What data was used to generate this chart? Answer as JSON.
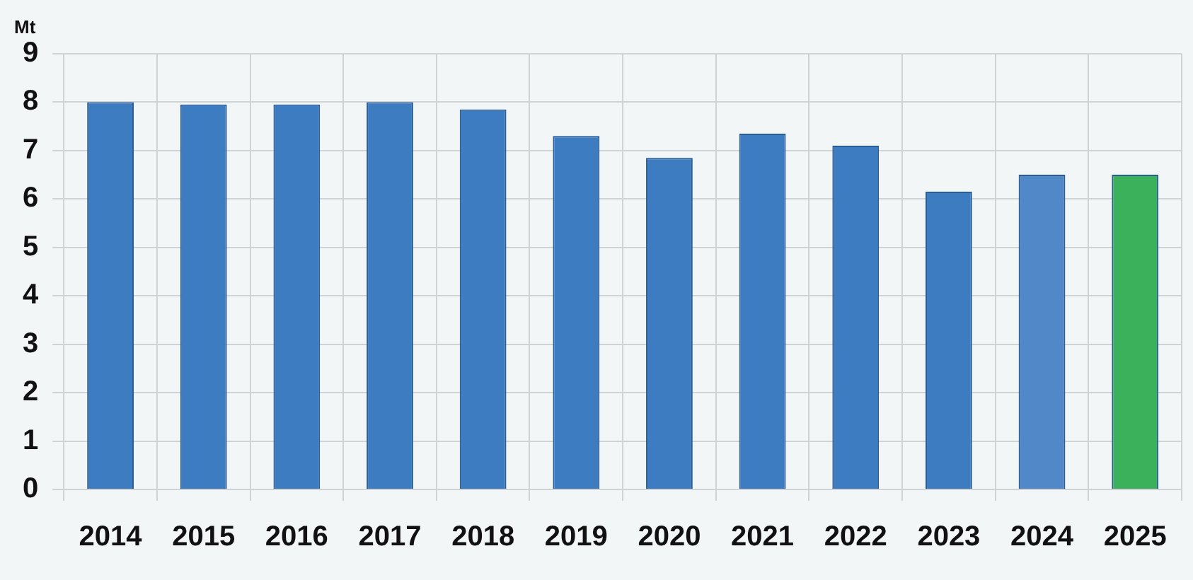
{
  "chart_data": {
    "type": "bar",
    "ylabel": "Mt",
    "categories": [
      "2014",
      "2015",
      "2016",
      "2017",
      "2018",
      "2019",
      "2020",
      "2021",
      "2022",
      "2023",
      "2024",
      "2025"
    ],
    "values": [
      8.0,
      7.95,
      7.95,
      8.0,
      7.85,
      7.3,
      6.85,
      7.35,
      7.1,
      6.15,
      6.5,
      6.5
    ],
    "colors": [
      "#3d7cc1",
      "#3d7cc1",
      "#3d7cc1",
      "#3d7cc1",
      "#3d7cc1",
      "#3d7cc1",
      "#3d7cc1",
      "#3d7cc1",
      "#3d7cc1",
      "#3d7cc1",
      "#5088c8",
      "#3bb15b"
    ],
    "ylim": [
      0,
      9
    ],
    "yticks": [
      0,
      1,
      2,
      3,
      4,
      5,
      6,
      7,
      8,
      9
    ],
    "grid": true,
    "legend": false
  }
}
